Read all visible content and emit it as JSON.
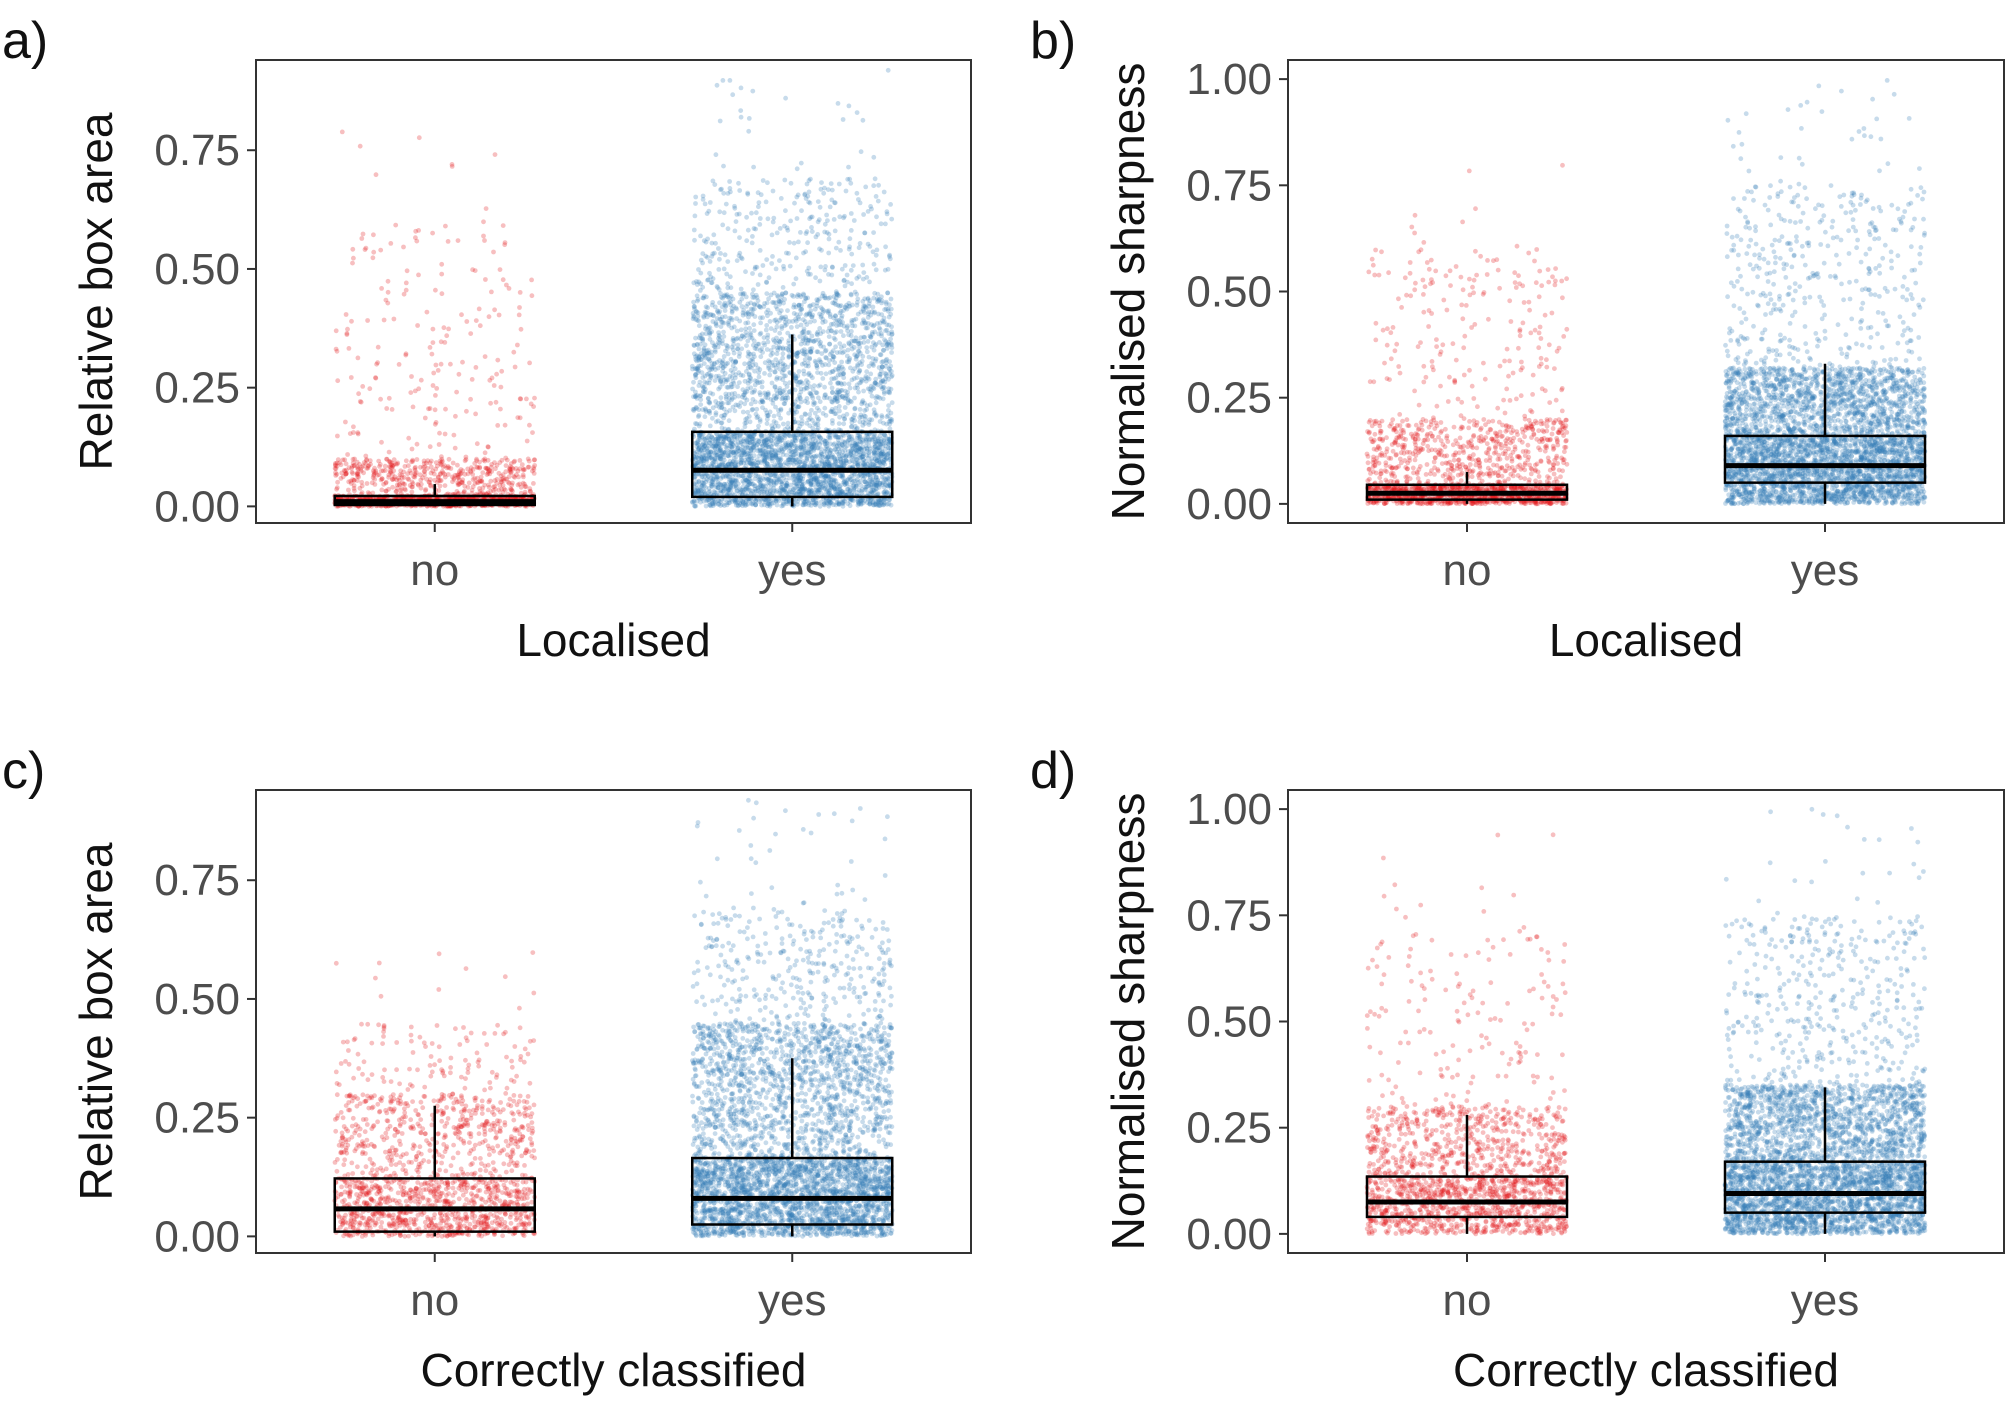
{
  "chart_data": [
    {
      "type": "box",
      "panel_label": "a)",
      "xlabel": "Localised",
      "ylabel": "Relative box area",
      "ylim": [
        -0.035,
        0.94
      ],
      "yticks": [
        0.0,
        0.25,
        0.5,
        0.75
      ],
      "ytick_labels": [
        "0.00",
        "0.25",
        "0.50",
        "0.75"
      ],
      "categories": [
        "no",
        "yes"
      ],
      "colors": [
        "#e41a1c",
        "#377eb8"
      ],
      "boxes": [
        {
          "category": "no",
          "lower": 0.0,
          "q1": 0.003,
          "median": 0.01,
          "q3": 0.022,
          "upper": 0.047,
          "max": 0.8,
          "n_points": 1500,
          "dense_top": 0.1
        },
        {
          "category": "yes",
          "lower": 0.0,
          "q1": 0.02,
          "median": 0.076,
          "q3": 0.157,
          "upper": 0.362,
          "max": 0.92,
          "n_points": 4200,
          "dense_top": 0.45
        }
      ],
      "grid": false
    },
    {
      "type": "box",
      "panel_label": "b)",
      "xlabel": "Localised",
      "ylabel": "Normalised sharpness",
      "ylim": [
        -0.045,
        1.045
      ],
      "yticks": [
        0.0,
        0.25,
        0.5,
        0.75,
        1.0
      ],
      "ytick_labels": [
        "0.00",
        "0.25",
        "0.50",
        "0.75",
        "1.00"
      ],
      "categories": [
        "no",
        "yes"
      ],
      "colors": [
        "#e41a1c",
        "#377eb8"
      ],
      "boxes": [
        {
          "category": "no",
          "lower": 0.0,
          "q1": 0.01,
          "median": 0.025,
          "q3": 0.045,
          "upper": 0.075,
          "max": 0.8,
          "n_points": 1800,
          "dense_top": 0.2
        },
        {
          "category": "yes",
          "lower": 0.0,
          "q1": 0.05,
          "median": 0.09,
          "q3": 0.16,
          "upper": 0.33,
          "max": 1.0,
          "n_points": 4200,
          "dense_top": 0.32
        }
      ],
      "grid": false
    },
    {
      "type": "box",
      "panel_label": "c)",
      "xlabel": "Correctly classified",
      "ylabel": "Relative box area",
      "ylim": [
        -0.035,
        0.94
      ],
      "yticks": [
        0.0,
        0.25,
        0.5,
        0.75
      ],
      "ytick_labels": [
        "0.00",
        "0.25",
        "0.50",
        "0.75"
      ],
      "categories": [
        "no",
        "yes"
      ],
      "colors": [
        "#e41a1c",
        "#377eb8"
      ],
      "boxes": [
        {
          "category": "no",
          "lower": 0.0,
          "q1": 0.01,
          "median": 0.058,
          "q3": 0.122,
          "upper": 0.275,
          "max": 0.6,
          "n_points": 1500,
          "dense_top": 0.3
        },
        {
          "category": "yes",
          "lower": 0.0,
          "q1": 0.025,
          "median": 0.08,
          "q3": 0.165,
          "upper": 0.375,
          "max": 0.92,
          "n_points": 4200,
          "dense_top": 0.45
        }
      ],
      "grid": false
    },
    {
      "type": "box",
      "panel_label": "d)",
      "xlabel": "Correctly classified",
      "ylabel": "Normalised sharpness",
      "ylim": [
        -0.045,
        1.045
      ],
      "yticks": [
        0.0,
        0.25,
        0.5,
        0.75,
        1.0
      ],
      "ytick_labels": [
        "0.00",
        "0.25",
        "0.50",
        "0.75",
        "1.00"
      ],
      "categories": [
        "no",
        "yes"
      ],
      "colors": [
        "#e41a1c",
        "#377eb8"
      ],
      "boxes": [
        {
          "category": "no",
          "lower": 0.0,
          "q1": 0.04,
          "median": 0.075,
          "q3": 0.135,
          "upper": 0.28,
          "max": 0.95,
          "n_points": 1700,
          "dense_top": 0.3
        },
        {
          "category": "yes",
          "lower": 0.0,
          "q1": 0.05,
          "median": 0.095,
          "q3": 0.17,
          "upper": 0.345,
          "max": 1.0,
          "n_points": 4200,
          "dense_top": 0.35
        }
      ],
      "grid": false
    }
  ]
}
